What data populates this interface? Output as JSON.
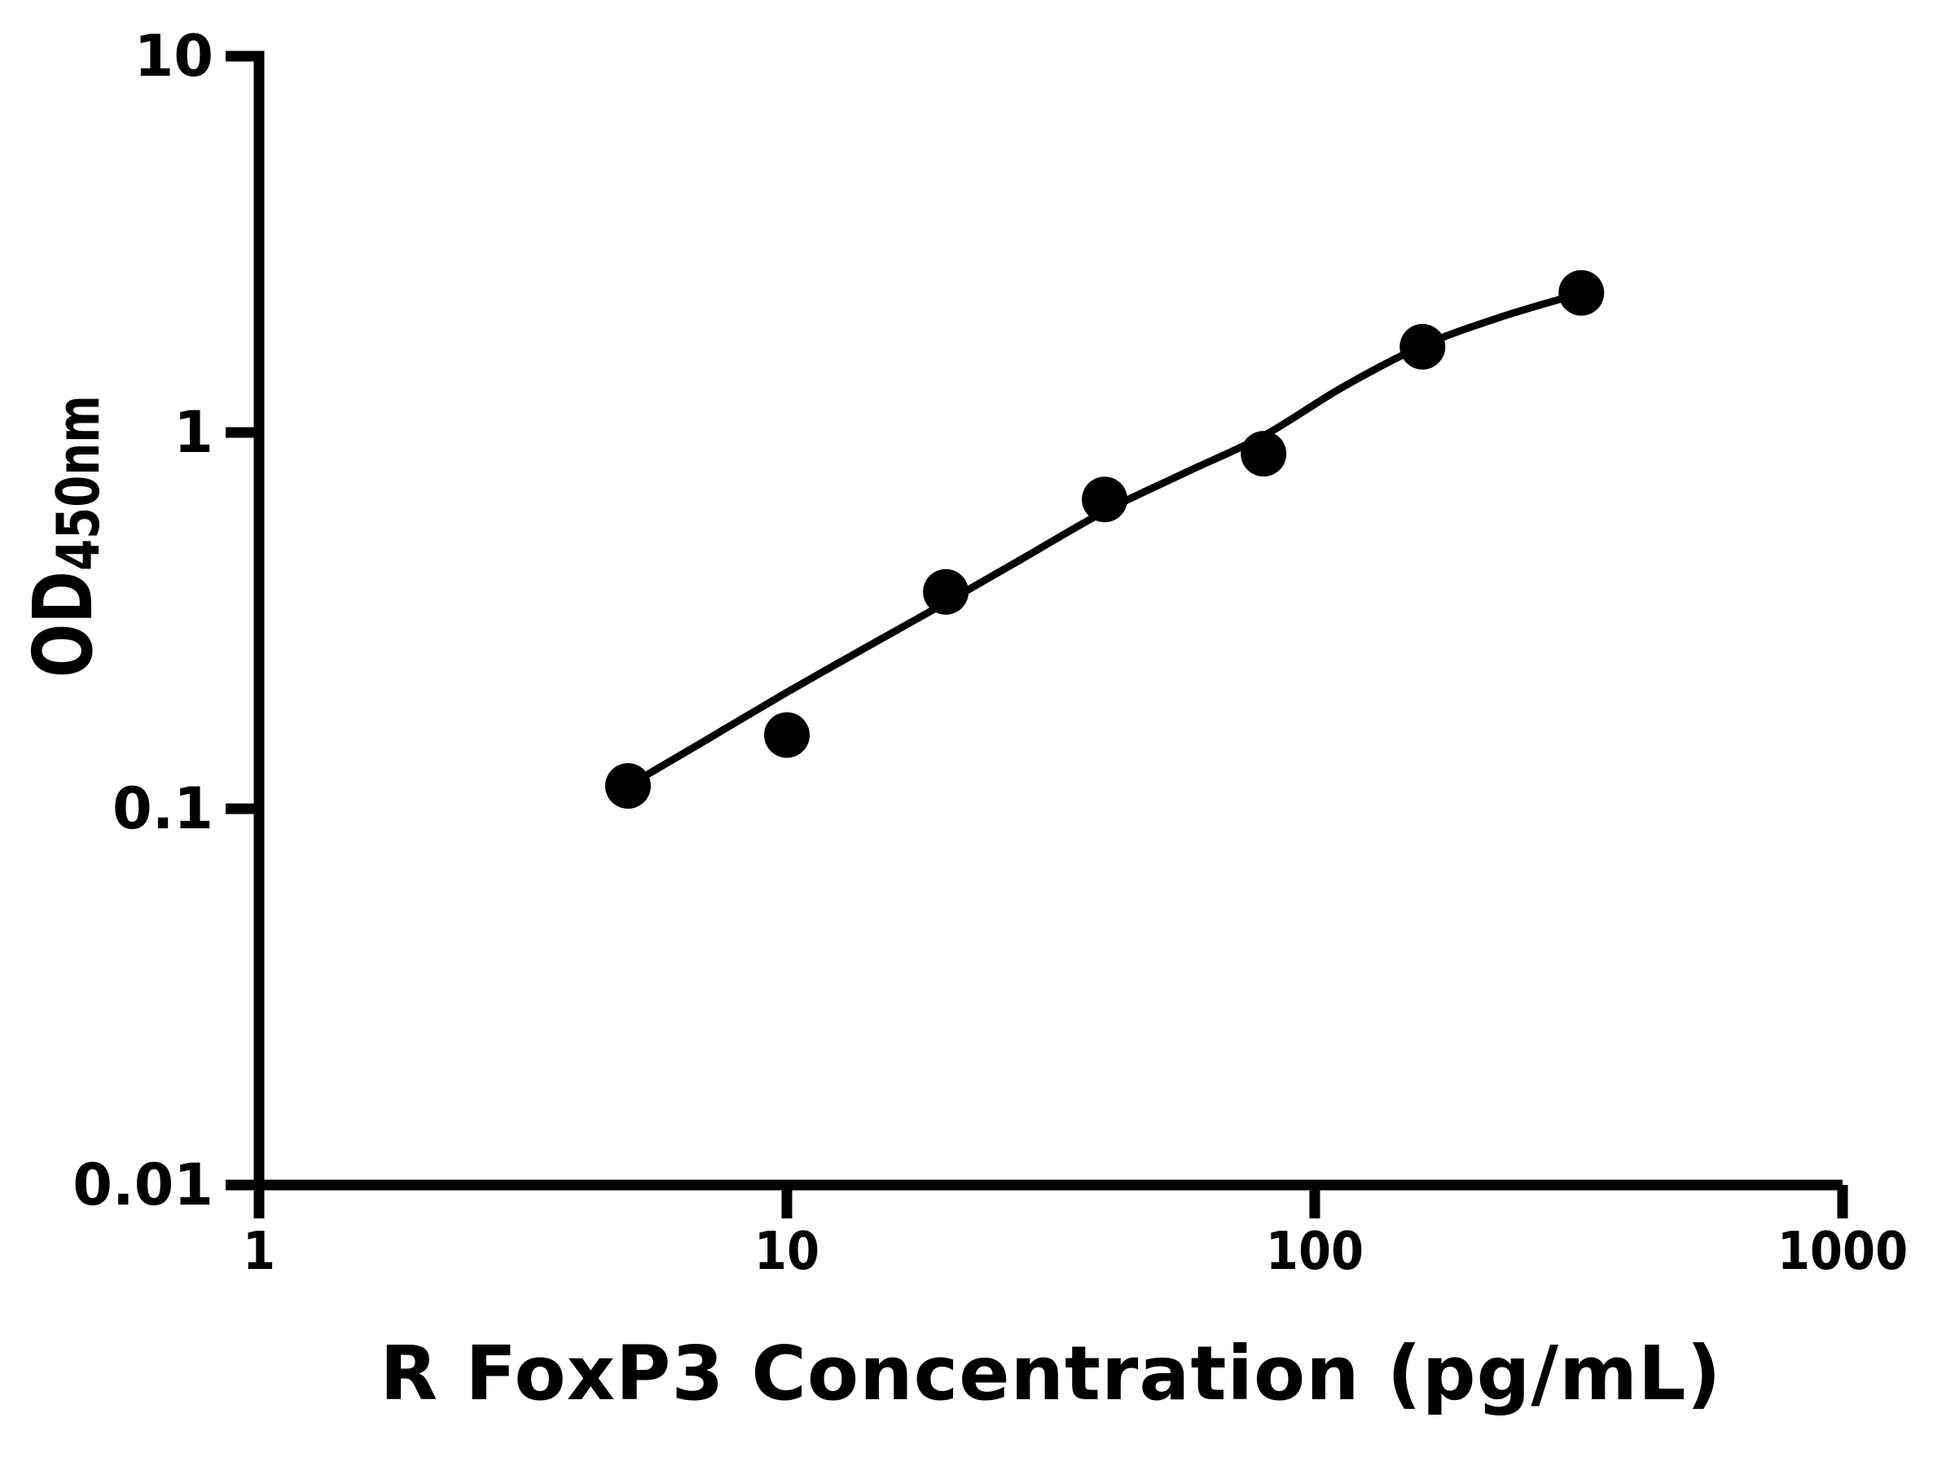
{
  "chart_data": {
    "type": "scatter",
    "title": "",
    "xlabel": "R FoxP3 Concentration (pg/mL)",
    "ylabel": "OD450nm",
    "ylabel_parts": {
      "main": "OD",
      "sub": "450nm"
    },
    "x_scale": "log",
    "y_scale": "log",
    "xlim": [
      1,
      1000
    ],
    "ylim": [
      0.01,
      10
    ],
    "x_ticks": [
      1,
      10,
      100,
      1000
    ],
    "x_tick_labels": [
      "1",
      "10",
      "100",
      "1000"
    ],
    "y_ticks": [
      10,
      1,
      0.1,
      0.01
    ],
    "y_tick_labels": [
      "10",
      "1",
      "0.1",
      "0.01"
    ],
    "grid": false,
    "legend": false,
    "background_color": "#ffffff",
    "axis_color": "#000000",
    "marker_color": "#000000",
    "line_color": "#000000",
    "series": [
      {
        "name": "standard-points",
        "type": "scatter",
        "x": [
          5,
          10,
          20,
          40,
          80,
          160,
          320
        ],
        "y": [
          0.115,
          0.157,
          0.377,
          0.664,
          0.878,
          1.69,
          2.35
        ]
      },
      {
        "name": "fitted-curve",
        "type": "line",
        "x": [
          5,
          7.07,
          10,
          14.1,
          20,
          28.3,
          40,
          56.6,
          80,
          113,
          160,
          226,
          320
        ],
        "y": [
          0.115,
          0.153,
          0.204,
          0.268,
          0.353,
          0.467,
          0.617,
          0.78,
          0.98,
          1.32,
          1.7,
          2.03,
          2.345
        ]
      }
    ]
  }
}
